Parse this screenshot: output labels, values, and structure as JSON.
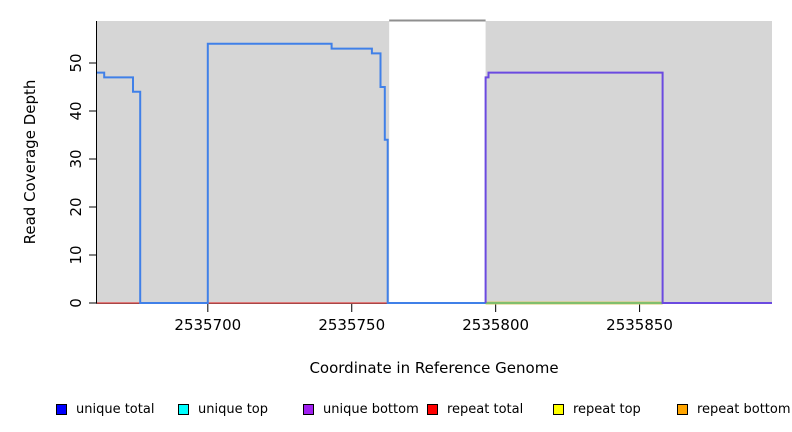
{
  "figure": {
    "x_label": "Coordinate in Reference Genome",
    "y_label": "Read Coverage Depth"
  },
  "chart_data": {
    "type": "line",
    "subtype": "step-coverage-plot",
    "title": "",
    "xlabel": "Coordinate in Reference Genome",
    "ylabel": "Read Coverage Depth",
    "x_axis": {
      "ticks": [
        2535700,
        2535750,
        2535800,
        2535850
      ],
      "range": [
        2535661.5,
        2535896
      ]
    },
    "y_axis": {
      "ticks": [
        0,
        10,
        20,
        30,
        40,
        50
      ],
      "range": [
        0,
        58.75
      ]
    },
    "background": {
      "panel_color": "#d6d6d6",
      "shaded_x_ranges": [
        [
          2535661.5,
          2535763
        ],
        [
          2535796.5,
          2535896
        ]
      ],
      "gap_x_range": [
        2535763,
        2535796.5
      ],
      "gap_top_border_color": "#8f8f8f"
    },
    "series": [
      {
        "name": "repeat total",
        "color": "#e05c5c",
        "stroke_width_px": 1.6,
        "points": [
          [
            2535661.5,
            0
          ],
          [
            2535762.5,
            0
          ]
        ]
      },
      {
        "name": "repeat top",
        "color": "#d8ca6a",
        "stroke_width_px": 3,
        "points": [
          [
            2535796.5,
            0
          ],
          [
            2535858,
            0
          ]
        ]
      },
      {
        "name": "unique top",
        "color": "#62bb6e",
        "stroke_width_px": 1.6,
        "points": [
          [
            2535796.5,
            0
          ],
          [
            2535858,
            0
          ]
        ]
      },
      {
        "name": "unique total",
        "color": "#4080e8",
        "stroke_width_px": 2,
        "points": [
          [
            2535661.5,
            48
          ],
          [
            2535664,
            48
          ],
          [
            2535664,
            47
          ],
          [
            2535674,
            47
          ],
          [
            2535674,
            44
          ],
          [
            2535676.5,
            44
          ],
          [
            2535676.5,
            0
          ],
          [
            2535700,
            0
          ],
          [
            2535700,
            54
          ],
          [
            2535743,
            54
          ],
          [
            2535743,
            53
          ],
          [
            2535757,
            53
          ],
          [
            2535757,
            52
          ],
          [
            2535760,
            52
          ],
          [
            2535760,
            45
          ],
          [
            2535761.5,
            45
          ],
          [
            2535761.5,
            34
          ],
          [
            2535762.5,
            34
          ],
          [
            2535762.5,
            0
          ],
          [
            2535796.5,
            0
          ]
        ]
      },
      {
        "name": "unique bottom",
        "color": "#6b4ae0",
        "stroke_width_px": 2,
        "points": [
          [
            2535796.5,
            0
          ],
          [
            2535796.5,
            47
          ],
          [
            2535797.5,
            47
          ],
          [
            2535797.5,
            48
          ],
          [
            2535858,
            48
          ],
          [
            2535858,
            0
          ],
          [
            2535896,
            0
          ]
        ]
      }
    ],
    "legend": {
      "position": "bottom",
      "items": [
        {
          "label": "unique total",
          "color": "#0000ff"
        },
        {
          "label": "unique top",
          "color": "#00ffff"
        },
        {
          "label": "unique bottom",
          "color": "#a020f0"
        },
        {
          "label": "repeat total",
          "color": "#ff0000"
        },
        {
          "label": "repeat top",
          "color": "#ffff00"
        },
        {
          "label": "repeat bottom",
          "color": "#ffa500"
        }
      ]
    }
  }
}
